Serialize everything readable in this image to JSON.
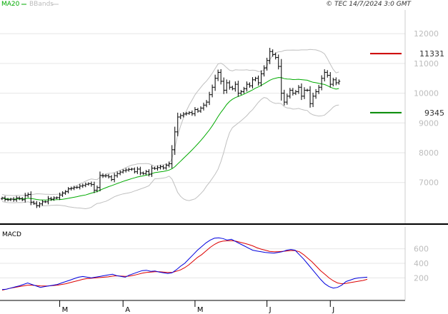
{
  "header": {
    "legend_ma20": "MA20",
    "legend_bbands": "BBands",
    "copyright": "© TEC 14/7/2024 3:0 GMT"
  },
  "colors": {
    "price": "#000000",
    "ma20": "#00aa00",
    "bbands": "#c0c0c0",
    "macd_line": "#0000dd",
    "signal_line": "#dd0000",
    "resistance": "#cc0000",
    "support": "#008800",
    "grid": "#e6e6e6",
    "axis_text": "#bdbdbd"
  },
  "chart_data": [
    {
      "type": "ohlc",
      "yticks": [
        7000,
        8000,
        9000,
        10000,
        11000,
        12000
      ],
      "ytick_labels": [
        "7000",
        "8000",
        "9000",
        "10000",
        "11000",
        "12000"
      ],
      "ylim": [
        5650,
        12700
      ],
      "xlim": [
        0,
        140
      ],
      "x_ticks": [
        {
          "label": "M",
          "x": 20
        },
        {
          "label": "A",
          "x": 42
        },
        {
          "label": "M",
          "x": 67
        },
        {
          "label": "J",
          "x": 92
        },
        {
          "label": "J",
          "x": 114
        }
      ],
      "levels": [
        {
          "label": "11331",
          "value": 11331,
          "color": "#cc0000"
        },
        {
          "label": "9345",
          "value": 9345,
          "color": "#008800"
        }
      ],
      "closes": [
        6480,
        6430,
        6420,
        6440,
        6420,
        6480,
        6460,
        6420,
        6560,
        6600,
        6340,
        6300,
        6220,
        6280,
        6350,
        6350,
        6460,
        6440,
        6480,
        6490,
        6580,
        6640,
        6690,
        6790,
        6800,
        6830,
        6840,
        6880,
        6900,
        6940,
        6960,
        6930,
        6740,
        6830,
        7240,
        7220,
        7230,
        7190,
        7100,
        7230,
        7300,
        7350,
        7400,
        7420,
        7440,
        7450,
        7360,
        7450,
        7320,
        7300,
        7370,
        7280,
        7480,
        7470,
        7500,
        7530,
        7490,
        7580,
        7630,
        8100,
        8700,
        9200,
        9250,
        9300,
        9320,
        9350,
        9310,
        9450,
        9400,
        9500,
        9600,
        9700,
        9950,
        10200,
        10500,
        10700,
        10400,
        10100,
        10350,
        10200,
        10150,
        10300,
        10000,
        10050,
        10150,
        10300,
        10250,
        10450,
        10500,
        10350,
        10650,
        10850,
        11100,
        11400,
        11300,
        11200,
        10900,
        10000,
        9700,
        9900,
        10100,
        10000,
        10050,
        10200,
        9900,
        10100,
        10100,
        9650,
        9900,
        10050,
        10200,
        10500,
        10700,
        10600,
        10300,
        10450,
        10350,
        10400
      ]
    },
    {
      "type": "line",
      "title": "MACD",
      "yticks": [
        200,
        400,
        600
      ],
      "ytick_labels": [
        "200",
        "400",
        "600"
      ],
      "ylim": [
        -100,
        900
      ],
      "macd": [
        40,
        45,
        60,
        75,
        90,
        110,
        130,
        110,
        90,
        70,
        80,
        90,
        100,
        110,
        130,
        150,
        170,
        190,
        210,
        220,
        210,
        200,
        210,
        220,
        230,
        240,
        250,
        230,
        220,
        210,
        240,
        260,
        280,
        300,
        305,
        290,
        295,
        280,
        270,
        260,
        270,
        310,
        360,
        400,
        460,
        520,
        580,
        630,
        680,
        720,
        745,
        750,
        740,
        720,
        730,
        700,
        670,
        640,
        610,
        580,
        570,
        560,
        550,
        545,
        540,
        550,
        560,
        580,
        590,
        580,
        520,
        460,
        390,
        320,
        250,
        180,
        120,
        80,
        60,
        70,
        100,
        150,
        170,
        190,
        200,
        205,
        210
      ],
      "signal": [
        30,
        45,
        60,
        70,
        80,
        90,
        100,
        100,
        95,
        90,
        88,
        90,
        95,
        100,
        110,
        120,
        135,
        150,
        165,
        180,
        190,
        195,
        200,
        205,
        210,
        215,
        225,
        228,
        225,
        222,
        225,
        235,
        250,
        265,
        275,
        280,
        285,
        285,
        280,
        275,
        275,
        290,
        310,
        340,
        380,
        430,
        480,
        520,
        570,
        620,
        660,
        690,
        705,
        710,
        712,
        705,
        690,
        675,
        660,
        640,
        615,
        595,
        580,
        565,
        560,
        560,
        565,
        570,
        575,
        575,
        560,
        520,
        470,
        420,
        360,
        300,
        250,
        200,
        160,
        130,
        120,
        125,
        135,
        145,
        155,
        165,
        180
      ]
    }
  ]
}
